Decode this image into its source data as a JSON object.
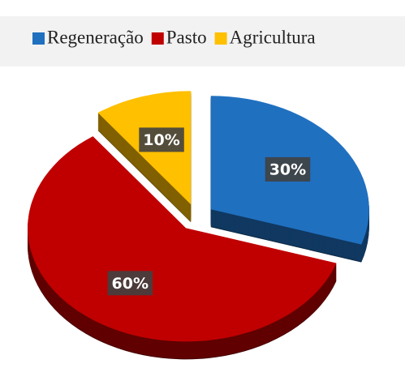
{
  "chart_data": {
    "type": "pie",
    "categories": [
      "Regeneração",
      "Pasto",
      "Agricultura"
    ],
    "values": [
      30,
      60,
      10
    ],
    "value_labels": [
      "30%",
      "60%",
      "10%"
    ],
    "colors": [
      "#2070c0",
      "#c00000",
      "#ffc000"
    ],
    "legend": "top"
  }
}
